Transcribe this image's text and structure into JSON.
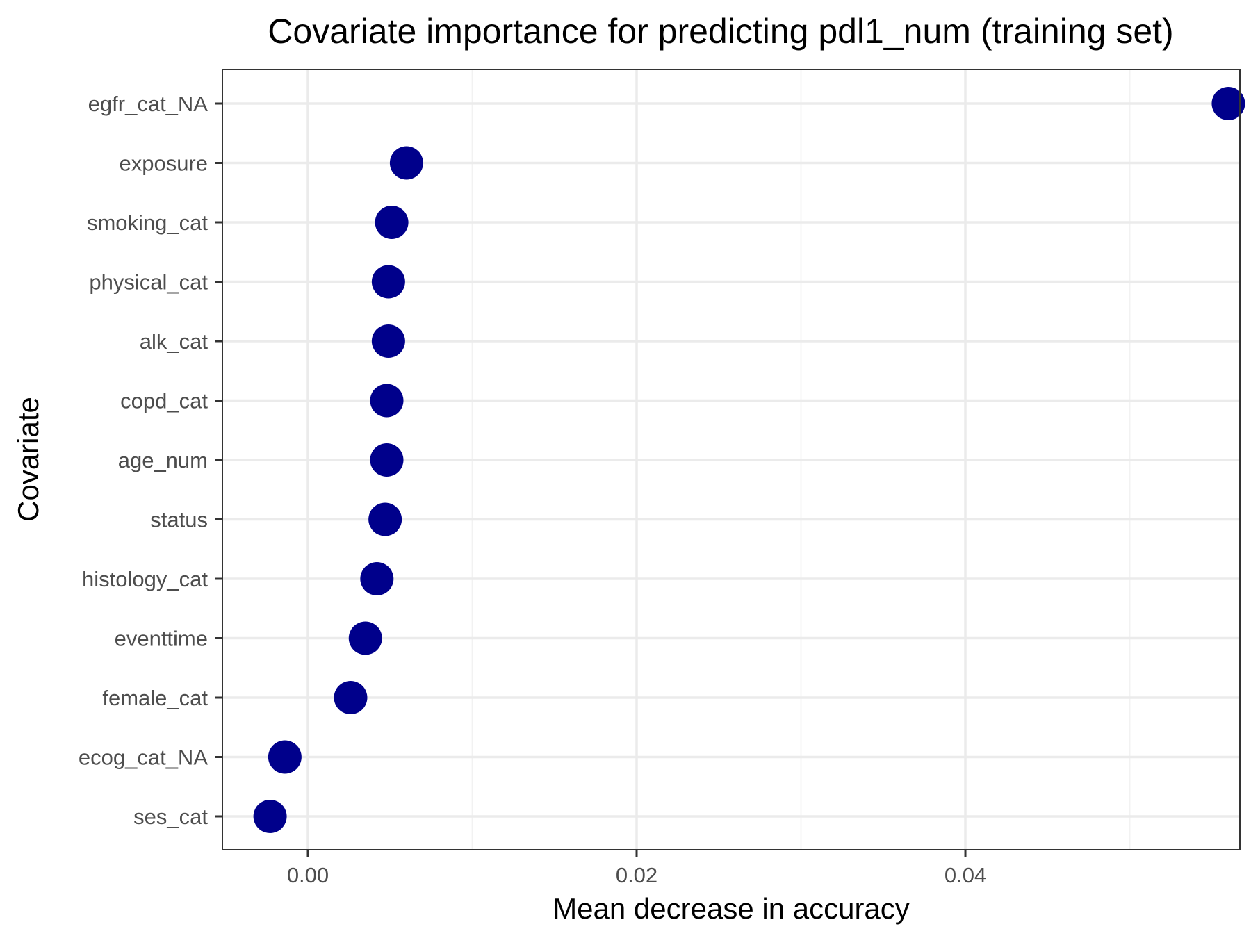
{
  "chart_data": {
    "type": "scatter",
    "title": "Covariate importance for predicting pdl1_num (training set)",
    "xlabel": "Mean decrease in accuracy",
    "ylabel": "Covariate",
    "xlim": [
      -0.0052,
      0.0567
    ],
    "x_ticks": [
      0.0,
      0.02,
      0.04
    ],
    "x_tick_labels": [
      "0.00",
      "0.02",
      "0.04"
    ],
    "grid": true,
    "legend": "none",
    "point_color": "#00008B",
    "categories": [
      "egfr_cat_NA",
      "exposure",
      "smoking_cat",
      "physical_cat",
      "alk_cat",
      "copd_cat",
      "age_num",
      "status",
      "histology_cat",
      "eventtime",
      "female_cat",
      "ecog_cat_NA",
      "ses_cat"
    ],
    "values": [
      0.056,
      0.006,
      0.0051,
      0.0049,
      0.0049,
      0.0048,
      0.0048,
      0.0047,
      0.0042,
      0.0035,
      0.0026,
      -0.0014,
      -0.0023
    ]
  }
}
